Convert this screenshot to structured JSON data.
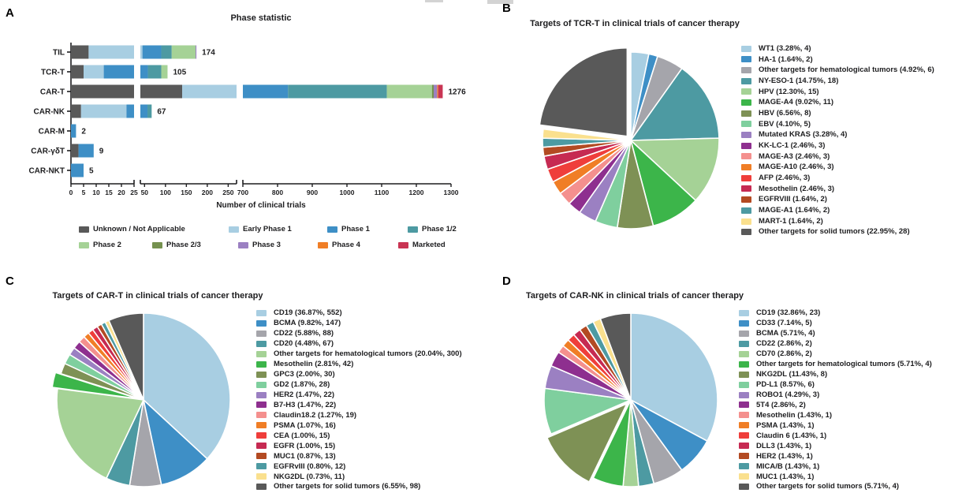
{
  "pie_palette": [
    "#A8CEE2",
    "#3E8FC6",
    "#A5A5AB",
    "#4D9AA2",
    "#A5D296",
    "#3CB54A",
    "#7E9155",
    "#7FCF9E",
    "#9B80C2",
    "#8E2F8F",
    "#F4908E",
    "#F07E26",
    "#EF3E3B",
    "#C62A52",
    "#B34A22",
    "#4D9AA2",
    "#FAE08E",
    "#595959"
  ],
  "chart_data": [
    {
      "panel_label": "A",
      "type": "bar",
      "orientation": "horizontal",
      "stacked": true,
      "title": "Phase statistic",
      "xlabel": "Number of clinical trials",
      "categories": [
        "TIL",
        "TCR-T",
        "CAR-T",
        "CAR-NK",
        "CAR-M",
        "CAR-γδT",
        "CAR-NKT"
      ],
      "totals": [
        174,
        105,
        1276,
        67,
        2,
        9,
        5
      ],
      "series": [
        {
          "name": "Unknown / Not Applicable",
          "color": "#595959",
          "values": [
            7,
            5,
            140,
            4,
            0,
            3,
            0
          ]
        },
        {
          "name": "Early Phase 1",
          "color": "#A8CEE2",
          "values": [
            38,
            8,
            330,
            18,
            0,
            0,
            0
          ]
        },
        {
          "name": "Phase 1",
          "color": "#3E8FC6",
          "values": [
            45,
            45,
            360,
            35,
            2,
            6,
            5
          ]
        },
        {
          "name": "Phase 1/2",
          "color": "#4D9AA2",
          "values": [
            25,
            32,
            285,
            10,
            0,
            0,
            0
          ]
        },
        {
          "name": "Phase 2",
          "color": "#A5D296",
          "values": [
            57,
            15,
            130,
            0,
            0,
            0,
            0
          ]
        },
        {
          "name": "Phase 2/3",
          "color": "#75914F",
          "values": [
            0,
            0,
            5,
            0,
            0,
            0,
            0
          ]
        },
        {
          "name": "Phase 3",
          "color": "#9B80C2",
          "values": [
            2,
            0,
            10,
            0,
            0,
            0,
            0
          ]
        },
        {
          "name": "Phase 4",
          "color": "#F07E26",
          "values": [
            0,
            0,
            3,
            0,
            0,
            0,
            0
          ]
        },
        {
          "name": "Marketed",
          "color": "#C93453",
          "values": [
            0,
            0,
            13,
            0,
            0,
            0,
            0
          ]
        }
      ],
      "axis_segments": [
        {
          "range": [
            0,
            25
          ],
          "ticks": [
            0,
            5,
            10,
            15,
            20,
            25
          ]
        },
        {
          "range": [
            40,
            270
          ],
          "ticks": [
            50,
            100,
            150,
            200,
            250
          ]
        },
        {
          "range": [
            700,
            1300
          ],
          "ticks": [
            700,
            800,
            900,
            1000,
            1100,
            1200,
            1300
          ]
        }
      ]
    },
    {
      "panel_label": "B",
      "type": "pie",
      "title": "Targets of TCR-T in clinical trials of cancer therapy",
      "exploded_slice_index": 17,
      "legend_position": "right",
      "slices": [
        {
          "label": "WT1 (3.28%, 4)",
          "value": 4
        },
        {
          "label": "HA-1 (1.64%, 2)",
          "value": 2
        },
        {
          "label": "Other targets for hematological tumors (4.92%, 6)",
          "value": 6
        },
        {
          "label": "NY-ESO-1 (14.75%, 18)",
          "value": 18
        },
        {
          "label": "HPV (12.30%, 15)",
          "value": 15
        },
        {
          "label": "MAGE-A4 (9.02%, 11)",
          "value": 11
        },
        {
          "label": "HBV (6.56%, 8)",
          "value": 8
        },
        {
          "label": "EBV (4.10%, 5)",
          "value": 5
        },
        {
          "label": "Mutated KRAS (3.28%, 4)",
          "value": 4
        },
        {
          "label": "KK-LC-1 (2.46%, 3)",
          "value": 3
        },
        {
          "label": "MAGE-A3 (2.46%, 3)",
          "value": 3
        },
        {
          "label": "MAGE-A10 (2.46%, 3)",
          "value": 3
        },
        {
          "label": "AFP (2.46%, 3)",
          "value": 3
        },
        {
          "label": "Mesothelin (2.46%, 3)",
          "value": 3
        },
        {
          "label": "EGFRVIII (1.64%, 2)",
          "value": 2
        },
        {
          "label": "MAGE-A1 (1.64%, 2)",
          "value": 2
        },
        {
          "label": "MART-1 (1.64%, 2)",
          "value": 2
        },
        {
          "label": "Other targets for solid tumors (22.95%, 28)",
          "value": 28
        }
      ]
    },
    {
      "panel_label": "C",
      "type": "pie",
      "title": "Targets of CAR-T in clinical trials of cancer therapy",
      "exploded_slice_index": 5,
      "legend_position": "right",
      "slices": [
        {
          "label": "CD19 (36.87%, 552)",
          "value": 552
        },
        {
          "label": "BCMA (9.82%, 147)",
          "value": 147
        },
        {
          "label": "CD22 (5.88%, 88)",
          "value": 88
        },
        {
          "label": "CD20 (4.48%, 67)",
          "value": 67
        },
        {
          "label": "Other targets for hematological tumors (20.04%, 300)",
          "value": 300
        },
        {
          "label": "Mesothelin (2.81%, 42)",
          "value": 42
        },
        {
          "label": "GPC3 (2.00%, 30)",
          "value": 30
        },
        {
          "label": "GD2 (1.87%, 28)",
          "value": 28
        },
        {
          "label": "HER2 (1.47%, 22)",
          "value": 22
        },
        {
          "label": "B7-H3 (1.47%, 22)",
          "value": 22
        },
        {
          "label": "Claudin18.2 (1.27%, 19)",
          "value": 19
        },
        {
          "label": "PSMA (1.07%, 16)",
          "value": 16
        },
        {
          "label": "CEA (1.00%, 15)",
          "value": 15
        },
        {
          "label": "EGFR (1.00%, 15)",
          "value": 15
        },
        {
          "label": "MUC1 (0.87%, 13)",
          "value": 13
        },
        {
          "label": "EGFRvIII (0.80%, 12)",
          "value": 12
        },
        {
          "label": "NKG2DL (0.73%, 11)",
          "value": 11
        },
        {
          "label": "Other targets for solid tumors (6.55%, 98)",
          "value": 98
        }
      ]
    },
    {
      "panel_label": "D",
      "type": "pie",
      "title": "Targets of CAR-NK in clinical trials of cancer therapy",
      "exploded_slice_index": 6,
      "legend_position": "right",
      "slices": [
        {
          "label": "CD19 (32.86%, 23)",
          "value": 23
        },
        {
          "label": "CD33 (7.14%, 5)",
          "value": 5
        },
        {
          "label": "BCMA (5.71%, 4)",
          "value": 4
        },
        {
          "label": "CD22 (2.86%, 2)",
          "value": 2
        },
        {
          "label": "CD70 (2.86%, 2)",
          "value": 2
        },
        {
          "label": "Other targets for hematological tumors (5.71%, 4)",
          "value": 4
        },
        {
          "label": "NKG2DL (11.43%, 8)",
          "value": 8
        },
        {
          "label": "PD-L1 (8.57%, 6)",
          "value": 6
        },
        {
          "label": "ROBO1 (4.29%, 3)",
          "value": 3
        },
        {
          "label": "5T4 (2.86%, 2)",
          "value": 2
        },
        {
          "label": "Mesothelin (1.43%, 1)",
          "value": 1
        },
        {
          "label": "PSMA (1.43%, 1)",
          "value": 1
        },
        {
          "label": "Claudin 6 (1.43%, 1)",
          "value": 1
        },
        {
          "label": "DLL3 (1.43%, 1)",
          "value": 1
        },
        {
          "label": "HER2 (1.43%, 1)",
          "value": 1
        },
        {
          "label": "MICA/B (1.43%, 1)",
          "value": 1
        },
        {
          "label": "MUC1 (1.43%, 1)",
          "value": 1
        },
        {
          "label": "Other targets for solid tumors (5.71%, 4)",
          "value": 4
        }
      ]
    }
  ]
}
